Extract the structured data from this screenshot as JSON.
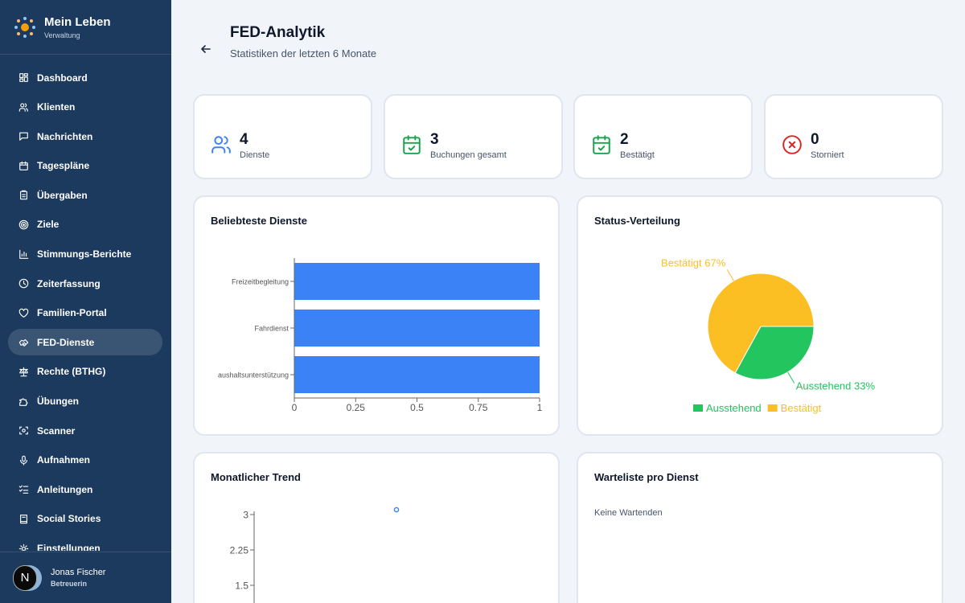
{
  "sidebar": {
    "title": "Mein Leben",
    "subtitle": "Verwaltung",
    "items": [
      {
        "label": "Dashboard",
        "icon": "dashboard-icon"
      },
      {
        "label": "Klienten",
        "icon": "users-icon"
      },
      {
        "label": "Nachrichten",
        "icon": "message-icon"
      },
      {
        "label": "Tagespläne",
        "icon": "calendar-icon"
      },
      {
        "label": "Übergaben",
        "icon": "clipboard-icon"
      },
      {
        "label": "Ziele",
        "icon": "target-icon"
      },
      {
        "label": "Stimmungs-Berichte",
        "icon": "bar-chart-icon"
      },
      {
        "label": "Zeiterfassung",
        "icon": "clock-icon"
      },
      {
        "label": "Familien-Portal",
        "icon": "heart-icon"
      },
      {
        "label": "FED-Dienste",
        "icon": "handshake-icon"
      },
      {
        "label": "Rechte (BTHG)",
        "icon": "scale-icon"
      },
      {
        "label": "Übungen",
        "icon": "puzzle-icon"
      },
      {
        "label": "Scanner",
        "icon": "scan-icon"
      },
      {
        "label": "Aufnahmen",
        "icon": "microphone-icon"
      },
      {
        "label": "Anleitungen",
        "icon": "list-checks-icon"
      },
      {
        "label": "Social Stories",
        "icon": "book-icon"
      },
      {
        "label": "Einstellungen",
        "icon": "gear-icon"
      }
    ],
    "active_index": 9,
    "user": {
      "initial": "N",
      "name": "Jonas Fischer",
      "role": "Betreuerin"
    }
  },
  "header": {
    "title": "FED-Analytik",
    "subtitle": "Statistiken der letzten 6 Monate"
  },
  "stats": [
    {
      "value": "4",
      "label": "Dienste",
      "icon": "users-icon",
      "color": "#3b82f6"
    },
    {
      "value": "3",
      "label": "Buchungen gesamt",
      "icon": "calendar-check-icon",
      "color": "#16a34a"
    },
    {
      "value": "2",
      "label": "Bestätigt",
      "icon": "calendar-check-icon",
      "color": "#16a34a"
    },
    {
      "value": "0",
      "label": "Storniert",
      "icon": "x-circle-icon",
      "color": "#dc2626"
    }
  ],
  "popular": {
    "title": "Beliebteste Dienste"
  },
  "status": {
    "title": "Status-Verteilung"
  },
  "trend": {
    "title": "Monatlicher Trend"
  },
  "waitlist": {
    "title": "Warteliste pro Dienst",
    "empty": "Keine Wartenden"
  },
  "chart_data": [
    {
      "type": "bar",
      "orientation": "horizontal",
      "categories": [
        "Freizeitbegleitung",
        "Fahrdienst",
        "aushaltsunterstützung"
      ],
      "values": [
        1,
        1,
        1
      ],
      "xlim": [
        0,
        1
      ],
      "xticks": [
        "0",
        "0.25",
        "0.5",
        "0.75",
        "1"
      ],
      "color": "#3b82f6"
    },
    {
      "type": "pie",
      "slices": [
        {
          "name": "Ausstehend",
          "value": 33,
          "label": "Ausstehend 33%",
          "color": "#22c55e"
        },
        {
          "name": "Bestätigt",
          "value": 67,
          "label": "Bestätigt 67%",
          "color": "#fbbf24"
        }
      ],
      "legend": "bottom"
    },
    {
      "type": "line",
      "yticks": [
        "3",
        "2.25",
        "1.5"
      ],
      "ylim": [
        0,
        3
      ],
      "points": [
        {
          "y": 3
        }
      ],
      "color": "#3b82f6"
    }
  ]
}
